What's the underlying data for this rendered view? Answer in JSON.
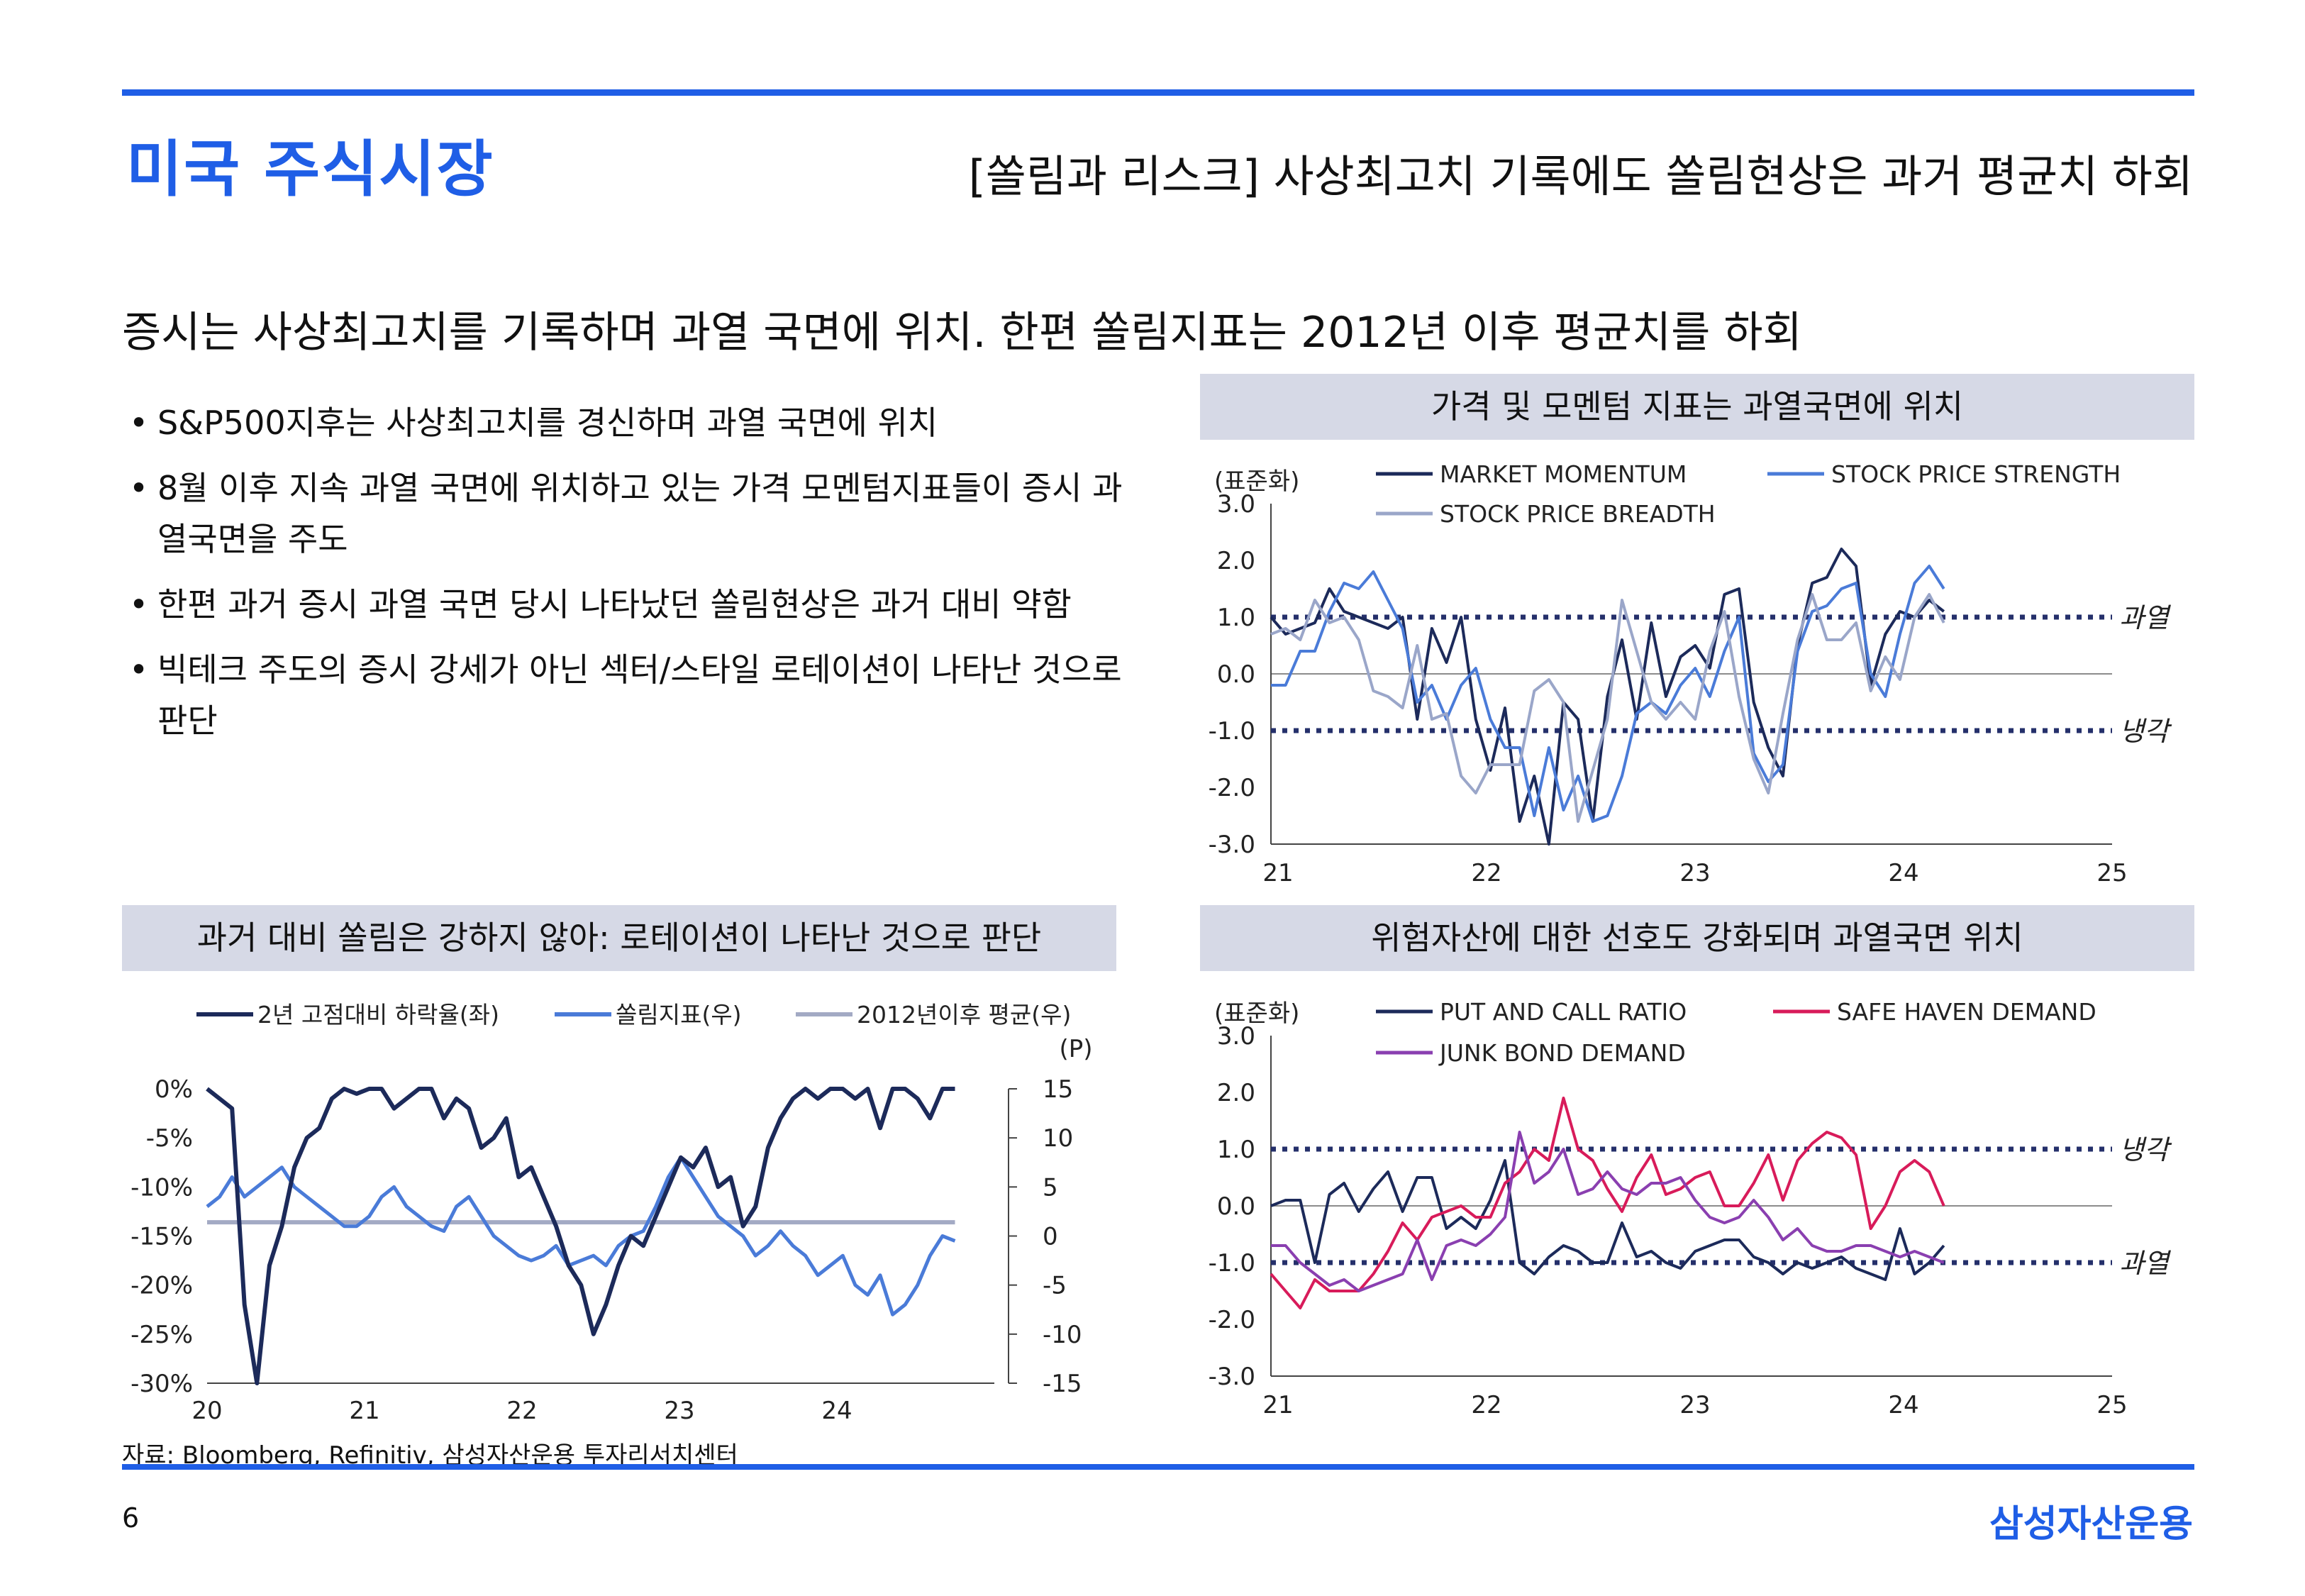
{
  "header": {
    "title": "미국 주식시장",
    "subtitle": "[쏠림과 리스크] 사상최고치 기록에도 쏠림현상은 과거 평균치 하회"
  },
  "headline": "증시는 사상최고치를 기록하며 과열 국면에 위치. 한편 쏠림지표는 2012년 이후 평균치를 하회",
  "bullets": [
    "S&P500지후는 사상최고치를 경신하며 과열 국면에 위치",
    "8월 이후 지속 과열 국면에 위치하고 있는 가격 모멘텀지표들이 증시 과열국면을 주도",
    "한편 과거 증시 과열 국면 당시 나타났던 쏠림현상은 과거 대비 약함",
    "빅테크 주도의 증시 강세가 아닌 섹터/스타일 로테이션이 나타난 것으로 판단"
  ],
  "footer": {
    "source": "자료: Bloomberg, Refinitiv, 삼성자산운용 투자리서치센터",
    "page_number": "6",
    "brand": "삼성자산운용"
  },
  "chart_data": [
    {
      "id": "chart1",
      "type": "line",
      "title": "가격 및 모멘텀 지표는 과열국면에 위치",
      "ylabel": "(표준화)",
      "ylim": [
        -3.0,
        3.0
      ],
      "yticks": [
        -3.0,
        -2.0,
        -1.0,
        0.0,
        1.0,
        2.0,
        3.0
      ],
      "ytick_labels": [
        "-3.0",
        "-2.0",
        "-1.0",
        "0.0",
        "1.0",
        "2.0",
        "3.0"
      ],
      "xlim": [
        21,
        25
      ],
      "xticks": [
        21,
        22,
        23,
        24,
        25
      ],
      "xtick_labels": [
        "21",
        "22",
        "23",
        "24",
        "25"
      ],
      "reference_lines": [
        {
          "value": 1.0,
          "label": "과열",
          "color": "#25306b"
        },
        {
          "value": -1.0,
          "label": "냉각",
          "color": "#25306b"
        }
      ],
      "series": [
        {
          "name": "MARKET MOMENTUM",
          "color": "#1c2a5a",
          "values": [
            1.0,
            0.7,
            0.8,
            0.9,
            1.5,
            1.1,
            1.0,
            0.9,
            0.8,
            1.0,
            -0.8,
            0.8,
            0.2,
            1.0,
            -0.8,
            -1.7,
            -0.6,
            -2.6,
            -1.8,
            -3.0,
            -0.5,
            -0.8,
            -2.6,
            -0.4,
            0.6,
            -0.8,
            0.9,
            -0.4,
            0.3,
            0.5,
            0.1,
            1.4,
            1.5,
            -0.5,
            -1.3,
            -1.8,
            0.5,
            1.6,
            1.7,
            2.2,
            1.9,
            -0.2,
            0.7,
            1.1,
            1.0,
            1.3,
            1.1
          ]
        },
        {
          "name": "STOCK PRICE STRENGTH",
          "color": "#4a7bd8",
          "values": [
            -0.2,
            -0.2,
            0.4,
            0.4,
            1.1,
            1.6,
            1.5,
            1.8,
            1.3,
            0.8,
            -0.5,
            -0.2,
            -0.8,
            -0.2,
            0.1,
            -0.8,
            -1.3,
            -1.3,
            -2.5,
            -1.3,
            -2.4,
            -1.8,
            -2.6,
            -2.5,
            -1.8,
            -0.7,
            -0.5,
            -0.7,
            -0.2,
            0.1,
            -0.4,
            0.4,
            1.0,
            -1.4,
            -1.9,
            -1.6,
            0.4,
            1.1,
            1.2,
            1.5,
            1.6,
            0.0,
            -0.4,
            0.7,
            1.6,
            1.9,
            1.5
          ]
        },
        {
          "name": "STOCK PRICE BREADTH",
          "color": "#9aa6c9",
          "values": [
            0.7,
            0.8,
            0.6,
            1.3,
            0.9,
            1.0,
            0.6,
            -0.3,
            -0.4,
            -0.6,
            0.5,
            -0.8,
            -0.7,
            -1.8,
            -2.1,
            -1.6,
            -1.6,
            -1.6,
            -0.3,
            -0.1,
            -0.5,
            -2.6,
            -1.7,
            -0.8,
            1.3,
            0.4,
            -0.5,
            -0.8,
            -0.5,
            -0.8,
            0.4,
            1.1,
            -0.4,
            -1.5,
            -2.1,
            -0.7,
            0.6,
            1.4,
            0.6,
            0.6,
            0.9,
            -0.3,
            0.3,
            -0.1,
            1.0,
            1.4,
            0.9
          ]
        }
      ]
    },
    {
      "id": "chart2",
      "type": "line",
      "title": "과거 대비 쏠림은 강하지 않아: 로테이션이 나타난 것으로 판단",
      "y_left_lim": [
        -30,
        0
      ],
      "y_left_ticks": [
        0,
        -5,
        -10,
        -15,
        -20,
        -25,
        -30
      ],
      "y_left_tick_labels": [
        "0%",
        "-5%",
        "-10%",
        "-15%",
        "-20%",
        "-25%",
        "-30%"
      ],
      "y_right_lim": [
        -15,
        15
      ],
      "y_right_ticks": [
        15,
        10,
        5,
        0,
        -5,
        -10,
        -15
      ],
      "y_right_tick_labels": [
        "15",
        "10",
        "5",
        "0",
        "-5",
        "-10",
        "-15"
      ],
      "y_right_unit": "(P)",
      "xlim": [
        20,
        25
      ],
      "xticks": [
        20,
        21,
        22,
        23,
        24
      ],
      "xtick_labels": [
        "20",
        "21",
        "22",
        "23",
        "24"
      ],
      "series": [
        {
          "name": "2년 고점대비 하락율(좌)",
          "axis": "left",
          "color": "#1c2a5a",
          "values": [
            0.0,
            -1.0,
            -2.0,
            -22.0,
            -30.0,
            -18.0,
            -14.0,
            -8.0,
            -5.0,
            -4.0,
            -1.0,
            0.0,
            -0.5,
            0.0,
            0.0,
            -2.0,
            -1.0,
            0.0,
            0.0,
            -3.0,
            -1.0,
            -2.0,
            -6.0,
            -5.0,
            -3.0,
            -9.0,
            -8.0,
            -11.0,
            -14.0,
            -18.0,
            -20.0,
            -25.0,
            -22.0,
            -18.0,
            -15.0,
            -16.0,
            -13.0,
            -10.0,
            -7.0,
            -8.0,
            -6.0,
            -10.0,
            -9.0,
            -14.0,
            -12.0,
            -6.0,
            -3.0,
            -1.0,
            0.0,
            -1.0,
            0.0,
            0.0,
            -1.0,
            0.0,
            -4.0,
            0.0,
            0.0,
            -1.0,
            -3.0,
            0.0,
            0.0
          ]
        },
        {
          "name": "쏠림지표(우)",
          "axis": "right",
          "color": "#4a7bd8",
          "values": [
            3.0,
            4.0,
            6.0,
            4.0,
            5.0,
            6.0,
            7.0,
            5.0,
            4.0,
            3.0,
            2.0,
            1.0,
            1.0,
            2.0,
            4.0,
            5.0,
            3.0,
            2.0,
            1.0,
            0.5,
            3.0,
            4.0,
            2.0,
            0.0,
            -1.0,
            -2.0,
            -2.5,
            -2.0,
            -1.0,
            -3.0,
            -2.5,
            -2.0,
            -3.0,
            -1.0,
            0.0,
            0.5,
            3.0,
            6.0,
            8.0,
            6.0,
            4.0,
            2.0,
            1.0,
            0.0,
            -2.0,
            -1.0,
            0.5,
            -1.0,
            -2.0,
            -4.0,
            -3.0,
            -2.0,
            -5.0,
            -6.0,
            -4.0,
            -8.0,
            -7.0,
            -5.0,
            -2.0,
            0.0,
            -0.5
          ]
        },
        {
          "name": "2012년이후 평균(우)",
          "axis": "right",
          "color": "#a3aac4",
          "constant": 1.4
        }
      ]
    },
    {
      "id": "chart3",
      "type": "line",
      "title": "위험자산에 대한 선호도 강화되며 과열국면 위치",
      "ylabel": "(표준화)",
      "ylim": [
        -3.0,
        3.0
      ],
      "yticks": [
        -3.0,
        -2.0,
        -1.0,
        0.0,
        1.0,
        2.0,
        3.0
      ],
      "ytick_labels": [
        "-3.0",
        "-2.0",
        "-1.0",
        "0.0",
        "1.0",
        "2.0",
        "3.0"
      ],
      "xlim": [
        21,
        25
      ],
      "xticks": [
        21,
        22,
        23,
        24,
        25
      ],
      "xtick_labels": [
        "21",
        "22",
        "23",
        "24",
        "25"
      ],
      "reference_lines": [
        {
          "value": 1.0,
          "label": "냉각",
          "color": "#25306b"
        },
        {
          "value": -1.0,
          "label": "과열",
          "color": "#25306b"
        }
      ],
      "series": [
        {
          "name": "PUT AND CALL RATIO",
          "color": "#1c2a5a",
          "values": [
            0.0,
            0.1,
            0.1,
            -1.0,
            0.2,
            0.4,
            -0.1,
            0.3,
            0.6,
            -0.1,
            0.5,
            0.5,
            -0.4,
            -0.2,
            -0.4,
            0.1,
            0.8,
            -1.0,
            -1.2,
            -0.9,
            -0.7,
            -0.8,
            -1.0,
            -1.0,
            -0.3,
            -0.9,
            -0.8,
            -1.0,
            -1.1,
            -0.8,
            -0.7,
            -0.6,
            -0.6,
            -0.9,
            -1.0,
            -1.2,
            -1.0,
            -1.1,
            -1.0,
            -0.9,
            -1.1,
            -1.2,
            -1.3,
            -0.4,
            -1.2,
            -1.0,
            -0.7
          ]
        },
        {
          "name": "SAFE HAVEN DEMAND",
          "color": "#d81b5a",
          "values": [
            -1.2,
            -1.5,
            -1.8,
            -1.3,
            -1.5,
            -1.5,
            -1.5,
            -1.2,
            -0.8,
            -0.3,
            -0.6,
            -0.2,
            -0.1,
            0.0,
            -0.2,
            -0.2,
            0.4,
            0.6,
            1.0,
            0.8,
            1.9,
            1.0,
            0.8,
            0.3,
            -0.1,
            0.5,
            0.9,
            0.2,
            0.3,
            0.5,
            0.6,
            0.0,
            0.0,
            0.4,
            0.9,
            0.1,
            0.8,
            1.1,
            1.3,
            1.2,
            0.9,
            -0.4,
            0.0,
            0.6,
            0.8,
            0.6,
            0.0
          ]
        },
        {
          "name": "JUNK BOND DEMAND",
          "color": "#8a3fb0",
          "values": [
            -0.7,
            -0.7,
            -1.0,
            -1.2,
            -1.4,
            -1.3,
            -1.5,
            -1.4,
            -1.3,
            -1.2,
            -0.6,
            -1.3,
            -0.7,
            -0.6,
            -0.7,
            -0.5,
            -0.2,
            1.3,
            0.4,
            0.6,
            1.0,
            0.2,
            0.3,
            0.6,
            0.3,
            0.2,
            0.4,
            0.4,
            0.5,
            0.1,
            -0.2,
            -0.3,
            -0.2,
            0.1,
            -0.2,
            -0.6,
            -0.4,
            -0.7,
            -0.8,
            -0.8,
            -0.7,
            -0.7,
            -0.8,
            -0.9,
            -0.8,
            -0.9,
            -1.0
          ]
        }
      ]
    }
  ]
}
